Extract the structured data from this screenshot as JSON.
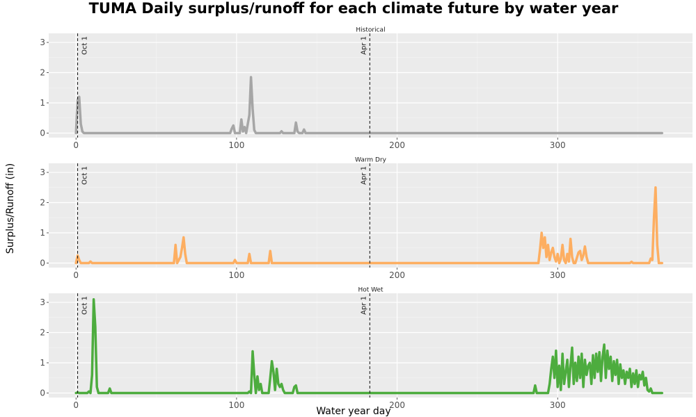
{
  "chart_data": {
    "type": "line",
    "title": "TUMA Daily surplus/runoff for each climate future by water year",
    "xlabel": "Water year day",
    "ylabel": "Surplus/Runoff (in)",
    "xlim": [
      -17,
      384
    ],
    "ylim": [
      -0.15,
      3.3
    ],
    "xticks": [
      0,
      100,
      200,
      300
    ],
    "yticks": [
      0,
      1,
      2,
      3
    ],
    "grid": true,
    "reference_lines": [
      {
        "x": 1,
        "label": "Oct 1"
      },
      {
        "x": 183,
        "label": "Apr 1"
      }
    ],
    "panels": [
      {
        "name": "Historical",
        "color": "#a6a6a6",
        "x": [
          0,
          1,
          2,
          3,
          4,
          5,
          6,
          96,
          97,
          98,
          99,
          100,
          102,
          103,
          104,
          105,
          106,
          107,
          108,
          109,
          110,
          111,
          112,
          113,
          127,
          128,
          129,
          136,
          137,
          138,
          139,
          141,
          142,
          143,
          365
        ],
        "values": [
          0,
          1.1,
          1.2,
          0.3,
          0.05,
          0,
          0,
          0,
          0.15,
          0.25,
          0,
          0,
          0,
          0.45,
          0.05,
          0.2,
          0,
          0.3,
          0.6,
          1.85,
          0.8,
          0.1,
          0,
          0,
          0,
          0.06,
          0,
          0,
          0.35,
          0.05,
          0,
          0,
          0.12,
          0,
          0
        ]
      },
      {
        "name": "Warm Dry",
        "color": "#fdae61",
        "x": [
          0,
          1,
          2,
          3,
          8,
          9,
          10,
          61,
          62,
          63,
          65,
          66,
          67,
          68,
          69,
          98,
          99,
          100,
          107,
          108,
          109,
          120,
          121,
          122,
          288,
          289,
          290,
          291,
          292,
          293,
          294,
          295,
          296,
          297,
          298,
          299,
          300,
          301,
          302,
          303,
          304,
          305,
          306,
          307,
          308,
          309,
          310,
          311,
          313,
          314,
          315,
          316,
          317,
          318,
          319,
          320,
          345,
          346,
          347,
          357,
          358,
          359,
          360,
          361,
          362,
          363,
          365
        ],
        "values": [
          0,
          0.25,
          0.1,
          0,
          0,
          0.05,
          0,
          0,
          0.6,
          0,
          0.2,
          0.5,
          0.85,
          0.3,
          0,
          0,
          0.1,
          0,
          0,
          0.3,
          0,
          0,
          0.4,
          0,
          0,
          0.45,
          1.0,
          0.5,
          0.85,
          0.2,
          0.6,
          0.1,
          0.35,
          0.5,
          0.2,
          0.05,
          0.3,
          0,
          0.15,
          0.6,
          0.1,
          0,
          0.3,
          0.05,
          0.8,
          0.2,
          0,
          0,
          0.35,
          0.4,
          0.1,
          0.25,
          0.55,
          0.2,
          0,
          0,
          0,
          0.04,
          0,
          0,
          0.15,
          0.1,
          1.5,
          2.5,
          0.6,
          0,
          0
        ]
      },
      {
        "name": "Hot Wet",
        "color": "#4dac3e",
        "x": [
          0,
          1,
          2,
          7,
          8,
          9,
          10,
          11,
          12,
          13,
          14,
          20,
          21,
          22,
          107,
          108,
          109,
          110,
          111,
          112,
          113,
          114,
          115,
          116,
          117,
          120,
          121,
          122,
          123,
          124,
          125,
          126,
          127,
          128,
          129,
          130,
          135,
          136,
          137,
          138,
          285,
          286,
          287,
          294,
          295,
          296,
          297,
          298,
          299,
          300,
          301,
          302,
          303,
          304,
          305,
          306,
          307,
          308,
          309,
          310,
          311,
          312,
          313,
          314,
          315,
          316,
          317,
          318,
          319,
          320,
          321,
          322,
          323,
          324,
          325,
          326,
          327,
          328,
          329,
          330,
          331,
          332,
          333,
          334,
          335,
          336,
          337,
          338,
          339,
          340,
          341,
          342,
          343,
          344,
          345,
          346,
          347,
          348,
          349,
          350,
          351,
          352,
          353,
          354,
          355,
          356,
          357,
          358,
          359,
          360,
          365
        ],
        "values": [
          0,
          0.02,
          0,
          0,
          0.05,
          0,
          0.6,
          3.1,
          2.2,
          0.2,
          0,
          0,
          0.15,
          0,
          0,
          0.05,
          0,
          1.38,
          0.6,
          0,
          0.55,
          0.1,
          0.3,
          0,
          0,
          0,
          0.5,
          1.05,
          0.7,
          0.1,
          0.8,
          0.3,
          0.2,
          0.3,
          0.1,
          0,
          0,
          0.2,
          0.25,
          0,
          0,
          0.25,
          0,
          0,
          0.3,
          0.8,
          1.2,
          0.5,
          1.4,
          0.2,
          0.9,
          0.1,
          1.3,
          0.3,
          0.7,
          1.1,
          0.2,
          0.9,
          1.5,
          0.3,
          1.0,
          0.4,
          1.2,
          0.5,
          1.3,
          0.2,
          1.1,
          0.6,
          0.9,
          1.0,
          0.3,
          1.25,
          0.5,
          1.3,
          0.7,
          1.35,
          0.4,
          1.2,
          1.6,
          0.5,
          1.4,
          0.8,
          1.2,
          0.4,
          1.05,
          0.6,
          1.1,
          0.3,
          0.95,
          0.5,
          0.75,
          0.3,
          0.7,
          0.5,
          0.8,
          0.2,
          0.65,
          0.3,
          0.75,
          0.2,
          0.6,
          0.45,
          0.7,
          0.25,
          0.5,
          0.1,
          0.05,
          0.15,
          0,
          0,
          0
        ]
      }
    ]
  }
}
